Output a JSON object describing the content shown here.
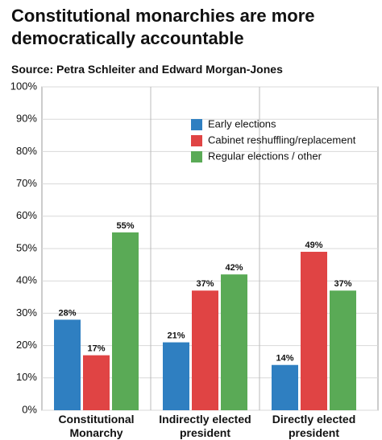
{
  "chart_data": {
    "type": "bar",
    "title": "Constitutional monarchies are more democratically accountable",
    "subtitle": "Source: Petra Schleiter and Edward Morgan-Jones",
    "categories": [
      "Constitutional Monarchy",
      "Indirectly elected president",
      "Directly elected president"
    ],
    "series": [
      {
        "name": "Early elections",
        "color": "#2f7fc1",
        "values": [
          28,
          21,
          14
        ],
        "value_labels": [
          "28%",
          "21%",
          "14%"
        ]
      },
      {
        "name": "Cabinet reshuffling/replacement",
        "color": "#e04444",
        "values": [
          17,
          37,
          49
        ],
        "value_labels": [
          "17%",
          "37%",
          "49%"
        ]
      },
      {
        "name": "Regular elections / other",
        "color": "#5aaa56",
        "values": [
          55,
          42,
          37
        ],
        "value_labels": [
          "55%",
          "42%",
          "37%"
        ]
      }
    ],
    "ylim": [
      0,
      100
    ],
    "yticks": [
      {
        "value": 0,
        "label": "0%"
      },
      {
        "value": 10,
        "label": "10%"
      },
      {
        "value": 20,
        "label": "20%"
      },
      {
        "value": 30,
        "label": "30%"
      },
      {
        "value": 40,
        "label": "40%"
      },
      {
        "value": 50,
        "label": "50%"
      },
      {
        "value": 60,
        "label": "60%"
      },
      {
        "value": 70,
        "label": "70%"
      },
      {
        "value": 80,
        "label": "80%"
      },
      {
        "value": 90,
        "label": "90%"
      },
      {
        "value": 100,
        "label": "100%"
      }
    ],
    "grid": true,
    "legend": "upper right"
  }
}
